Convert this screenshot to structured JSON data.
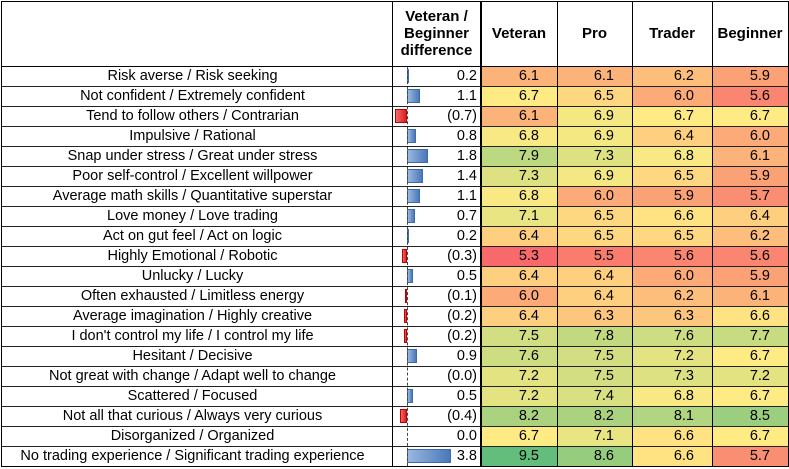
{
  "chart_data": {
    "type": "table",
    "headers": {
      "trait": "",
      "difference": "Veteran / Beginner difference",
      "columns": [
        "Veteran",
        "Pro",
        "Trader",
        "Beginner"
      ]
    },
    "rows": [
      {
        "trait": "Risk averse / Risk seeking",
        "diff": 0.2,
        "diff_label": "0.2",
        "values": [
          "6.1",
          "6.1",
          "6.2",
          "5.9"
        ]
      },
      {
        "trait": "Not confident / Extremely confident",
        "diff": 1.1,
        "diff_label": "1.1",
        "values": [
          "6.7",
          "6.5",
          "6.0",
          "5.6"
        ]
      },
      {
        "trait": "Tend to follow others / Contrarian",
        "diff": -0.7,
        "diff_label": "(0.7)",
        "values": [
          "6.1",
          "6.9",
          "6.7",
          "6.7"
        ]
      },
      {
        "trait": "Impulsive / Rational",
        "diff": 0.8,
        "diff_label": "0.8",
        "values": [
          "6.8",
          "6.9",
          "6.4",
          "6.0"
        ]
      },
      {
        "trait": "Snap under stress / Great under stress",
        "diff": 1.8,
        "diff_label": "1.8",
        "values": [
          "7.9",
          "7.3",
          "6.8",
          "6.1"
        ]
      },
      {
        "trait": "Poor self-control / Excellent willpower",
        "diff": 1.4,
        "diff_label": "1.4",
        "values": [
          "7.3",
          "6.9",
          "6.5",
          "5.9"
        ]
      },
      {
        "trait": "Average math skills / Quantitative superstar",
        "diff": 1.1,
        "diff_label": "1.1",
        "values": [
          "6.8",
          "6.0",
          "5.9",
          "5.7"
        ]
      },
      {
        "trait": "Love money / Love trading",
        "diff": 0.7,
        "diff_label": "0.7",
        "values": [
          "7.1",
          "6.5",
          "6.6",
          "6.4"
        ]
      },
      {
        "trait": "Act on gut feel / Act on logic",
        "diff": 0.2,
        "diff_label": "0.2",
        "values": [
          "6.4",
          "6.5",
          "6.5",
          "6.2"
        ]
      },
      {
        "trait": "Highly Emotional / Robotic",
        "diff": -0.3,
        "diff_label": "(0.3)",
        "values": [
          "5.3",
          "5.5",
          "5.6",
          "5.6"
        ]
      },
      {
        "trait": "Unlucky / Lucky",
        "diff": 0.5,
        "diff_label": "0.5",
        "values": [
          "6.4",
          "6.4",
          "6.0",
          "5.9"
        ]
      },
      {
        "trait": "Often exhausted / Limitless energy",
        "diff": -0.1,
        "diff_label": "(0.1)",
        "values": [
          "6.0",
          "6.4",
          "6.2",
          "6.1"
        ]
      },
      {
        "trait": "Average imagination / Highly creative",
        "diff": -0.2,
        "diff_label": "(0.2)",
        "values": [
          "6.4",
          "6.3",
          "6.3",
          "6.6"
        ]
      },
      {
        "trait": "I don't control my life / I control my life",
        "diff": -0.2,
        "diff_label": "(0.2)",
        "values": [
          "7.5",
          "7.8",
          "7.6",
          "7.7"
        ]
      },
      {
        "trait": "Hesitant / Decisive",
        "diff": 0.9,
        "diff_label": "0.9",
        "values": [
          "7.6",
          "7.5",
          "7.2",
          "6.7"
        ]
      },
      {
        "trait": "Not great with change / Adapt well to change",
        "diff": 0.0,
        "diff_label": "(0.0)",
        "values": [
          "7.2",
          "7.5",
          "7.3",
          "7.2"
        ]
      },
      {
        "trait": "Scattered / Focused",
        "diff": 0.5,
        "diff_label": "0.5",
        "values": [
          "7.2",
          "7.4",
          "6.8",
          "6.7"
        ]
      },
      {
        "trait": "Not all that curious / Always very curious",
        "diff": -0.4,
        "diff_label": "(0.4)",
        "values": [
          "8.2",
          "8.2",
          "8.1",
          "8.5"
        ]
      },
      {
        "trait": "Disorganized / Organized",
        "diff": 0.0,
        "diff_label": "0.0",
        "values": [
          "6.7",
          "7.1",
          "6.6",
          "6.7"
        ]
      },
      {
        "trait": "No trading experience / Significant trading experience",
        "diff": 3.8,
        "diff_label": "3.8",
        "values": [
          "9.5",
          "8.6",
          "6.6",
          "5.7"
        ]
      }
    ],
    "diff_range": [
      -0.7,
      3.8
    ],
    "value_range": [
      5.3,
      9.5
    ],
    "colors": {
      "low": "#f8696b",
      "mid": "#ffeb84",
      "high": "#63be7b",
      "bar_positive": "#4a78b8",
      "bar_negative": "#e01c1c"
    }
  }
}
